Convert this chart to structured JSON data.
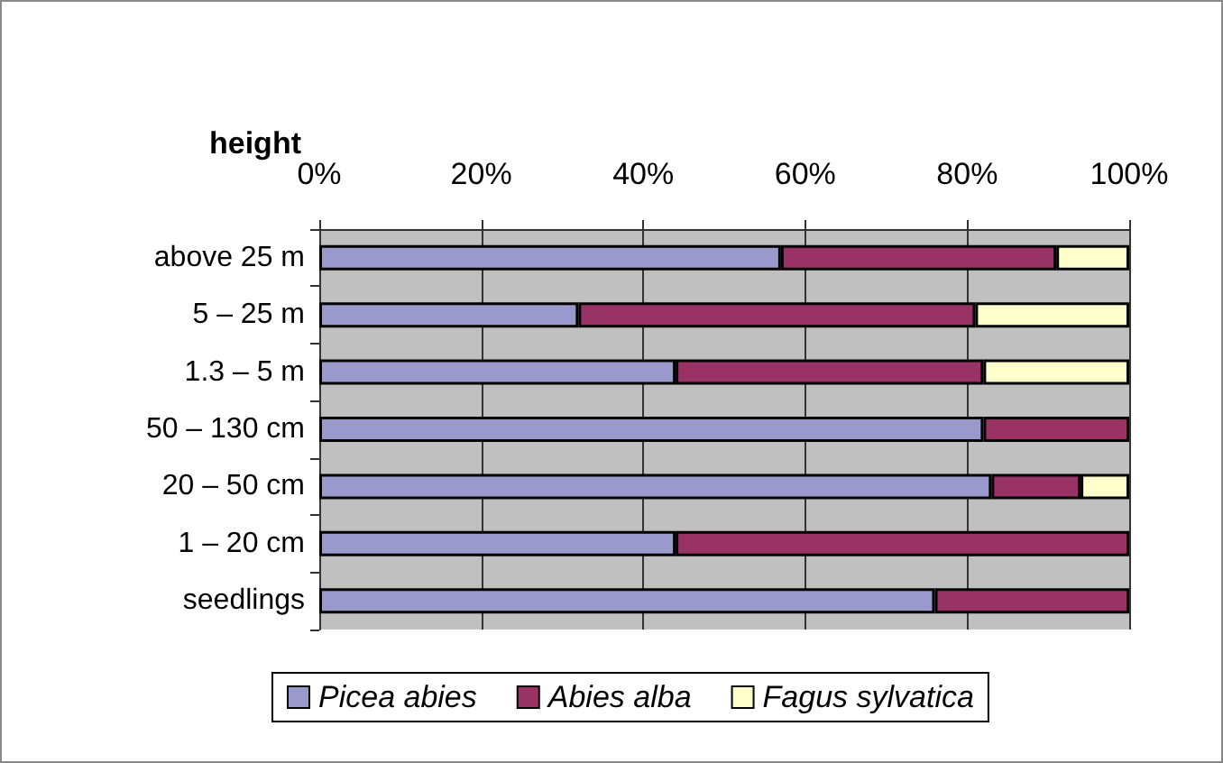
{
  "chart_data": {
    "type": "bar",
    "orientation": "horizontal",
    "stacked": true,
    "ylabel": "height",
    "categories": [
      "above 25 m",
      "5 – 25 m",
      "1.3 – 5 m",
      "50 – 130 cm",
      "20 – 50 cm",
      "1 – 20 cm",
      "seedlings"
    ],
    "series": [
      {
        "name": "Picea abies",
        "color": "#9999cc",
        "values": [
          57,
          32,
          44,
          82,
          83,
          44,
          76
        ]
      },
      {
        "name": "Abies alba",
        "color": "#993366",
        "values": [
          34,
          49,
          38,
          18,
          11,
          56,
          24
        ]
      },
      {
        "name": "Fagus sylvatica",
        "color": "#ffffcc",
        "values": [
          9,
          19,
          18,
          null,
          6,
          null,
          null
        ]
      }
    ],
    "xlim": [
      0,
      100
    ],
    "xticks": [
      {
        "value": 0,
        "label": "0%"
      },
      {
        "value": 20,
        "label": "20%"
      },
      {
        "value": 40,
        "label": "40%"
      },
      {
        "value": 60,
        "label": "60%"
      },
      {
        "value": 80,
        "label": "80%"
      },
      {
        "value": 100,
        "label": "100%"
      }
    ],
    "grid": "x",
    "legend": "bottom"
  }
}
